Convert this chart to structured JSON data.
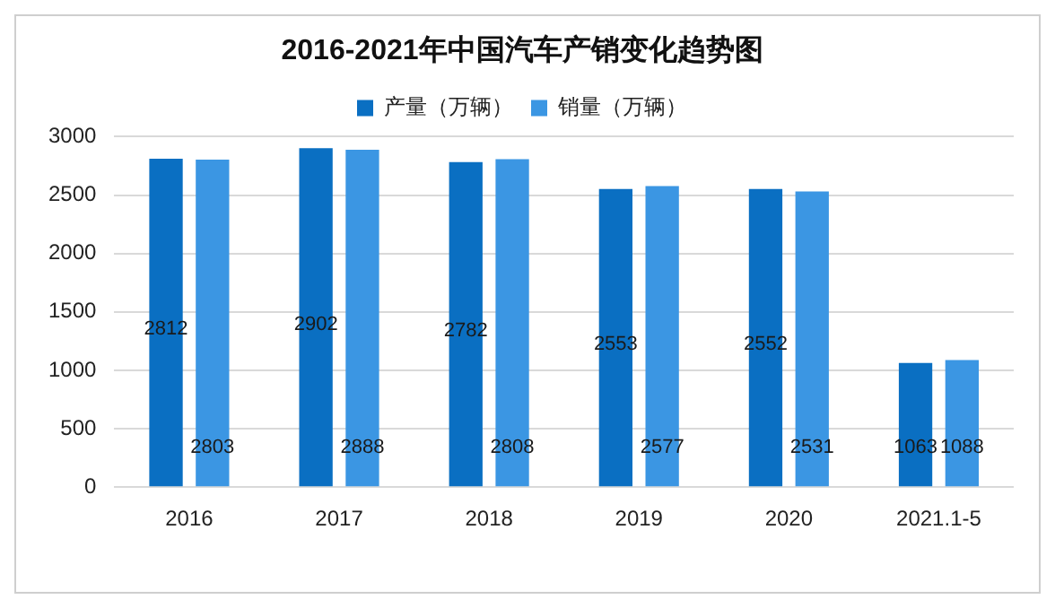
{
  "chart_data": {
    "type": "bar",
    "title": "2016-2021年中国汽车产销变化趋势图",
    "categories": [
      "2016",
      "2017",
      "2018",
      "2019",
      "2020",
      "2021.1-5"
    ],
    "series": [
      {
        "name": "产量（万辆）",
        "color": "#0a6fc2",
        "values": [
          2812,
          2902,
          2782,
          2553,
          2552,
          1063
        ]
      },
      {
        "name": "销量（万辆）",
        "color": "#3b96e3",
        "values": [
          2803,
          2888,
          2808,
          2577,
          2531,
          1088
        ]
      }
    ],
    "ylim": [
      0,
      3000
    ],
    "yticks": [
      0,
      500,
      1000,
      1500,
      2000,
      2500,
      3000
    ],
    "grid": "y",
    "legend": "top",
    "data_labels": true
  }
}
